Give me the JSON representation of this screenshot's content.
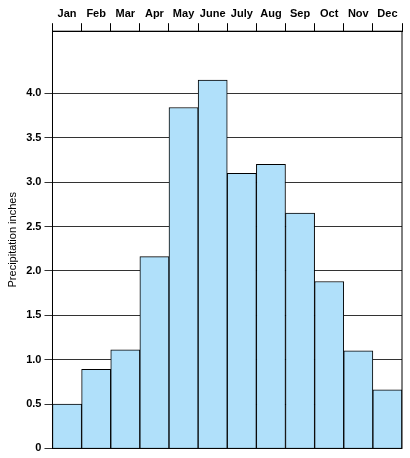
{
  "chart_data": {
    "type": "bar",
    "y_label": "Precipitation inches",
    "categories": [
      "Jan",
      "Feb",
      "Mar",
      "Apr",
      "May",
      "June",
      "July",
      "Aug",
      "Sep",
      "Oct",
      "Nov",
      "Dec"
    ],
    "values": [
      0.5,
      0.89,
      1.11,
      2.16,
      3.84,
      4.15,
      3.1,
      3.2,
      2.65,
      1.88,
      1.1,
      0.66
    ],
    "color": "#b0e0fa",
    "ylim": [
      0,
      4.7
    ],
    "yticks": [
      0,
      0.5,
      {
        "value": 1,
        "label": "1.0"
      },
      1.5,
      {
        "value": 2,
        "label": "2.0"
      },
      2.5,
      {
        "value": 3,
        "label": "3.0"
      },
      3.5,
      {
        "value": 4,
        "label": "4.0"
      }
    ],
    "grid": true
  }
}
